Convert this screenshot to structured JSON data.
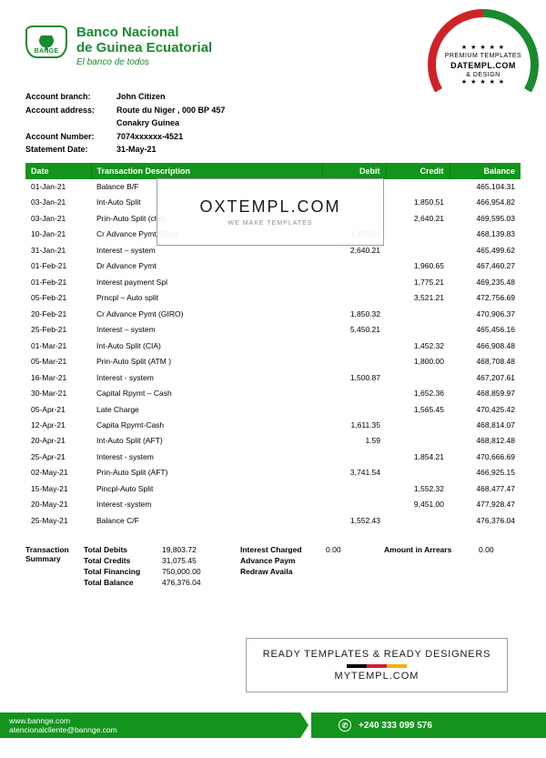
{
  "colors": {
    "brand_green": "#13941c",
    "logo_green": "#1a8a2e",
    "badge_red": "#d02028",
    "badge_white": "#ffffff",
    "text": "#000000",
    "wm_border": "#9aa0a6",
    "wm_sub": "#8a8f94",
    "flag_black": "#000000",
    "flag_red": "#d02028",
    "flag_gold": "#f2b100"
  },
  "logo": {
    "abbr": "BANGE",
    "line1": "Banco Nacional",
    "line2": "de Guinea Ecuatorial",
    "slogan": "El banco de todos"
  },
  "corner_badge": {
    "stars": "★ ★ ★ ★ ★",
    "line1": "PREMIUM TEMPLATES",
    "line2": "DATEMPL.COM",
    "line3": "& DESIGN"
  },
  "watermark_center": {
    "title": "OXTEMPL.COM",
    "sub": "WE MAKE TEMPLATES"
  },
  "watermark_bottom": {
    "title": "READY TEMPLATES & READY DESIGNERS",
    "site": "MYTEMPL.COM"
  },
  "account": {
    "rows": [
      {
        "label": "Account branch:",
        "value": "John Citizen"
      },
      {
        "label": "Account address:",
        "value": "Route du Niger , 000 BP 457"
      },
      {
        "label": "",
        "value": "Conakry  Guinea"
      },
      {
        "label": "Account Number:",
        "value": "7074xxxxxx-4521"
      },
      {
        "label": "Statement Date:",
        "value": "31-May-21"
      }
    ]
  },
  "table": {
    "columns": [
      "Date",
      "Transaction Description",
      "Debit",
      "Credit",
      "Balance"
    ],
    "rows": [
      [
        "01-Jan-21",
        "Balance B/F",
        "",
        "",
        "465,104.31"
      ],
      [
        "03-Jan-21",
        "Int-Auto Split",
        "",
        "1,850.51",
        "466,954.82"
      ],
      [
        "03-Jan-21",
        "Prin-Auto Split (chq)",
        "",
        "2,640.21",
        "469,595.03"
      ],
      [
        "10-Jan-21",
        "Cr Advance Pymt (Chq)",
        "1,455.20",
        "",
        "468,139.83"
      ],
      [
        "31-Jan-21",
        "Interest – system",
        "2,640.21",
        "",
        "465,499.62"
      ],
      [
        "01-Feb-21",
        "Dr Advance Pymt",
        "",
        "1,960.65",
        "467,460.27"
      ],
      [
        "01-Feb-21",
        "Interest payment Spl",
        "",
        "1,775.21",
        "469,235.48"
      ],
      [
        "05-Feb-21",
        "Prncpl – Auto split",
        "",
        "3,521.21",
        "472,756.69"
      ],
      [
        "20-Feb-21",
        "Cr Advance Pymt (GIRO)",
        "1,850.32",
        "",
        "470,906.37"
      ],
      [
        "25-Feb-21",
        "Interest – system",
        "5,450.21",
        "",
        "465,456.16"
      ],
      [
        "01-Mar-21",
        "Int-Auto Split (CIA)",
        "",
        "1,452.32",
        "466,908.48"
      ],
      [
        "05-Mar-21",
        "Prin-Auto Split (ATM )",
        "",
        "1,800.00",
        "468,708.48"
      ],
      [
        "16-Mar-21",
        "Interest - system",
        "1,500.87",
        "",
        "467,207.61"
      ],
      [
        "30-Mar-21",
        "Capital Rpymt – Cash",
        "",
        "1,652.36",
        "468,859.97"
      ],
      [
        "05-Apr-21",
        "Late Charge",
        "",
        "1,565.45",
        "470,425.42"
      ],
      [
        "12-Apr-21",
        "Capita Rpymt-Cash",
        "1,611.35",
        "",
        "468,814.07"
      ],
      [
        "20-Apr-21",
        "Int-Auto Split (AFT)",
        "1.59",
        "",
        "468,812.48"
      ],
      [
        "25-Apr-21",
        "Interest - system",
        "",
        "1,854.21",
        "470,666.69"
      ],
      [
        "02-May-21",
        "Prin-Auto Split (AFT)",
        "3,741.54",
        "",
        "466,925.15"
      ],
      [
        "15-May-21",
        "Pincpl-Auto Split",
        "",
        "1,552.32",
        "468,477.47"
      ],
      [
        "20-May-21",
        "Interest -system",
        "",
        "9,451.00",
        "477,928.47"
      ],
      [
        "25-May-21",
        "Balance C/F",
        "1,552.43",
        "",
        "476,376.04"
      ]
    ]
  },
  "summary": {
    "side_label1": "Transaction",
    "side_label2": "Summary",
    "left": [
      {
        "k": "Total Debits",
        "v": "19,803.72"
      },
      {
        "k": "Total Credits",
        "v": "31,075.45"
      },
      {
        "k": "Total Financing",
        "v": "750,000.00"
      },
      {
        "k": "Total Balance",
        "v": "476,376.04"
      }
    ],
    "mid": [
      {
        "k": "Interest Charged",
        "v": "0.00"
      },
      {
        "k": "Advance Paym",
        "v": ""
      },
      {
        "k": "Redraw Availa",
        "v": ""
      }
    ],
    "right": {
      "k": "Amount in Arrears",
      "v": "0.00"
    }
  },
  "footer": {
    "website": "www.bannge.com",
    "email": "atencionalcliente@bannge.com",
    "phone": "+240 333 099 576"
  }
}
